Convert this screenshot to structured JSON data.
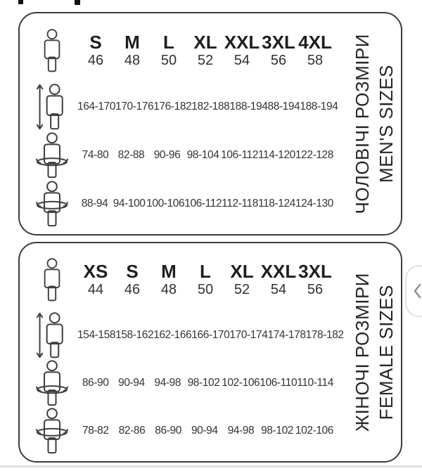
{
  "colors": {
    "card_border": "#3d3d3d",
    "text": "#2e2e2e",
    "divider": "#e2e2e2",
    "chevron": "#8f8f8f"
  },
  "icons": {
    "person": "person-outline-icon",
    "height": "person-height-arrow-icon",
    "waist_girth": "person-waist-girth-icon",
    "hip_girth": "person-hip-girth-icon",
    "carousel_prev": "chevron-left-icon"
  },
  "tables": [
    {
      "name": "men",
      "title_primary": "ЧОЛОВІЧІ РОЗМІРИ",
      "title_secondary": "MEN'S SIZES",
      "columns": [
        {
          "label": "S",
          "number": "46"
        },
        {
          "label": "M",
          "number": "48"
        },
        {
          "label": "L",
          "number": "50"
        },
        {
          "label": "XL",
          "number": "52"
        },
        {
          "label": "XXL",
          "number": "54"
        },
        {
          "label": "3XL",
          "number": "56"
        },
        {
          "label": "4XL",
          "number": "58"
        }
      ],
      "rows": [
        {
          "icon": "height-icon",
          "values": [
            "164-170",
            "170-176",
            "176-182",
            "182-188",
            "188-194",
            "88-194",
            "188-194"
          ]
        },
        {
          "icon": "waist-girth-icon",
          "values": [
            "74-80",
            "82-88",
            "90-96",
            "98-104",
            "106-112",
            "114-120",
            "122-128"
          ]
        },
        {
          "icon": "hip-girth-icon",
          "values": [
            "88-94",
            "94-100",
            "100-106",
            "106-112",
            "112-118",
            "118-124",
            "124-130"
          ]
        }
      ]
    },
    {
      "name": "female",
      "title_primary": "ЖІНОЧІ РОЗМІРИ",
      "title_secondary": "FEMALE SIZES",
      "columns": [
        {
          "label": "XS",
          "number": "44"
        },
        {
          "label": "S",
          "number": "46"
        },
        {
          "label": "M",
          "number": "48"
        },
        {
          "label": "L",
          "number": "50"
        },
        {
          "label": "XL",
          "number": "52"
        },
        {
          "label": "XXL",
          "number": "54"
        },
        {
          "label": "3XL",
          "number": "56"
        }
      ],
      "rows": [
        {
          "icon": "height-icon",
          "values": [
            "154-158",
            "158-162",
            "162-166",
            "166-170",
            "170-174",
            "174-178",
            "178-182"
          ]
        },
        {
          "icon": "waist-girth-icon",
          "values": [
            "86-90",
            "90-94",
            "94-98",
            "98-102",
            "102-106",
            "106-110",
            "110-114"
          ]
        },
        {
          "icon": "hip-girth-icon",
          "values": [
            "78-82",
            "82-86",
            "86-90",
            "90-94",
            "94-98",
            "98-102",
            "102-106"
          ]
        }
      ]
    }
  ]
}
